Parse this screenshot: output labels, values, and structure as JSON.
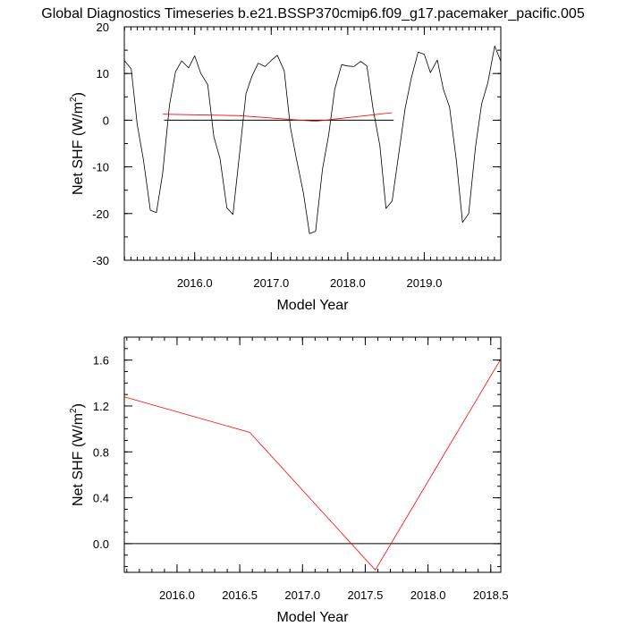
{
  "page": {
    "title": "Global Diagnostics Timeseries b.e21.BSSP370cmip6.f09_g17.pacemaker_pacific.005"
  },
  "chart_data": [
    {
      "type": "line",
      "xlabel": "Model Year",
      "ylabel_main": "Net SHF (W/m",
      "ylabel_sup": "2",
      "ylabel_close": ")",
      "xlim": [
        2015.08,
        2020.0
      ],
      "ylim": [
        -30,
        20
      ],
      "xticks": [
        2016.0,
        2017.0,
        2018.0,
        2019.0
      ],
      "xtick_labels": [
        "2016.0",
        "2017.0",
        "2018.0",
        "2019.0"
      ],
      "yticks": [
        -30,
        -20,
        -10,
        0,
        10,
        20
      ],
      "ytick_labels": [
        "-30",
        "-20",
        "-10",
        "0",
        "10",
        "20"
      ],
      "reference_line": {
        "y": 0,
        "x_range": [
          2015.6,
          2018.6
        ]
      },
      "series": [
        {
          "color": "#000000",
          "x": [
            2015.08,
            2015.17,
            2015.25,
            2015.33,
            2015.42,
            2015.5,
            2015.58,
            2015.67,
            2015.75,
            2015.83,
            2015.92,
            2016.0,
            2016.08,
            2016.17,
            2016.25,
            2016.33,
            2016.42,
            2016.5,
            2016.58,
            2016.67,
            2016.75,
            2016.83,
            2016.92,
            2017.0,
            2017.08,
            2017.17,
            2017.25,
            2017.33,
            2017.42,
            2017.5,
            2017.58,
            2017.67,
            2017.75,
            2017.83,
            2017.92,
            2018.0,
            2018.08,
            2018.17,
            2018.25,
            2018.33,
            2018.42,
            2018.5,
            2018.58,
            2018.67,
            2018.75,
            2018.83,
            2018.92,
            2019.0,
            2019.08,
            2019.17,
            2019.25,
            2019.33,
            2019.42,
            2019.5,
            2019.58,
            2019.67,
            2019.75,
            2019.83,
            2019.92,
            2020.0
          ],
          "values": [
            12.8,
            11.0,
            -1.0,
            -8.5,
            -19.3,
            -19.8,
            -11.5,
            3.2,
            10.4,
            12.7,
            11.2,
            13.8,
            10.0,
            7.6,
            -3.5,
            -8.2,
            -18.8,
            -20.2,
            -8.0,
            5.7,
            9.5,
            12.2,
            11.5,
            12.8,
            13.9,
            10.6,
            -1.5,
            -8.3,
            -15.5,
            -24.3,
            -23.8,
            -10.5,
            -3.2,
            6.6,
            11.9,
            11.6,
            11.5,
            12.6,
            11.6,
            2.5,
            -5.5,
            -18.9,
            -17.3,
            -6.8,
            2.5,
            9.0,
            14.6,
            14.1,
            10.2,
            12.9,
            6.6,
            2.8,
            -8.8,
            -21.9,
            -20.0,
            -5.6,
            3.5,
            8.0,
            15.9,
            12.6
          ]
        },
        {
          "color": "#ff0000",
          "x": [
            2015.58,
            2016.58,
            2017.58,
            2018.58
          ],
          "values": [
            1.28,
            0.97,
            -0.23,
            1.61
          ]
        }
      ]
    },
    {
      "type": "line",
      "xlabel": "Model Year",
      "ylabel_main": "Net SHF (W/m",
      "ylabel_sup": "2",
      "ylabel_close": ")",
      "xlim": [
        2015.58,
        2018.58
      ],
      "ylim": [
        -0.25,
        1.8
      ],
      "xticks": [
        2016.0,
        2016.5,
        2017.0,
        2017.5,
        2018.0,
        2018.5
      ],
      "xtick_labels": [
        "2016.0",
        "2016.5",
        "2017.0",
        "2017.5",
        "2018.0",
        "2018.5"
      ],
      "yticks": [
        0.0,
        0.4,
        0.8,
        1.2,
        1.6
      ],
      "ytick_labels": [
        "0.0",
        "0.4",
        "0.8",
        "1.2",
        "1.6"
      ],
      "reference_line": {
        "y": 0
      },
      "series": [
        {
          "color": "#ff0000",
          "x": [
            2015.58,
            2016.58,
            2017.58,
            2018.58
          ],
          "values": [
            1.28,
            0.97,
            -0.23,
            1.61
          ]
        }
      ]
    }
  ]
}
